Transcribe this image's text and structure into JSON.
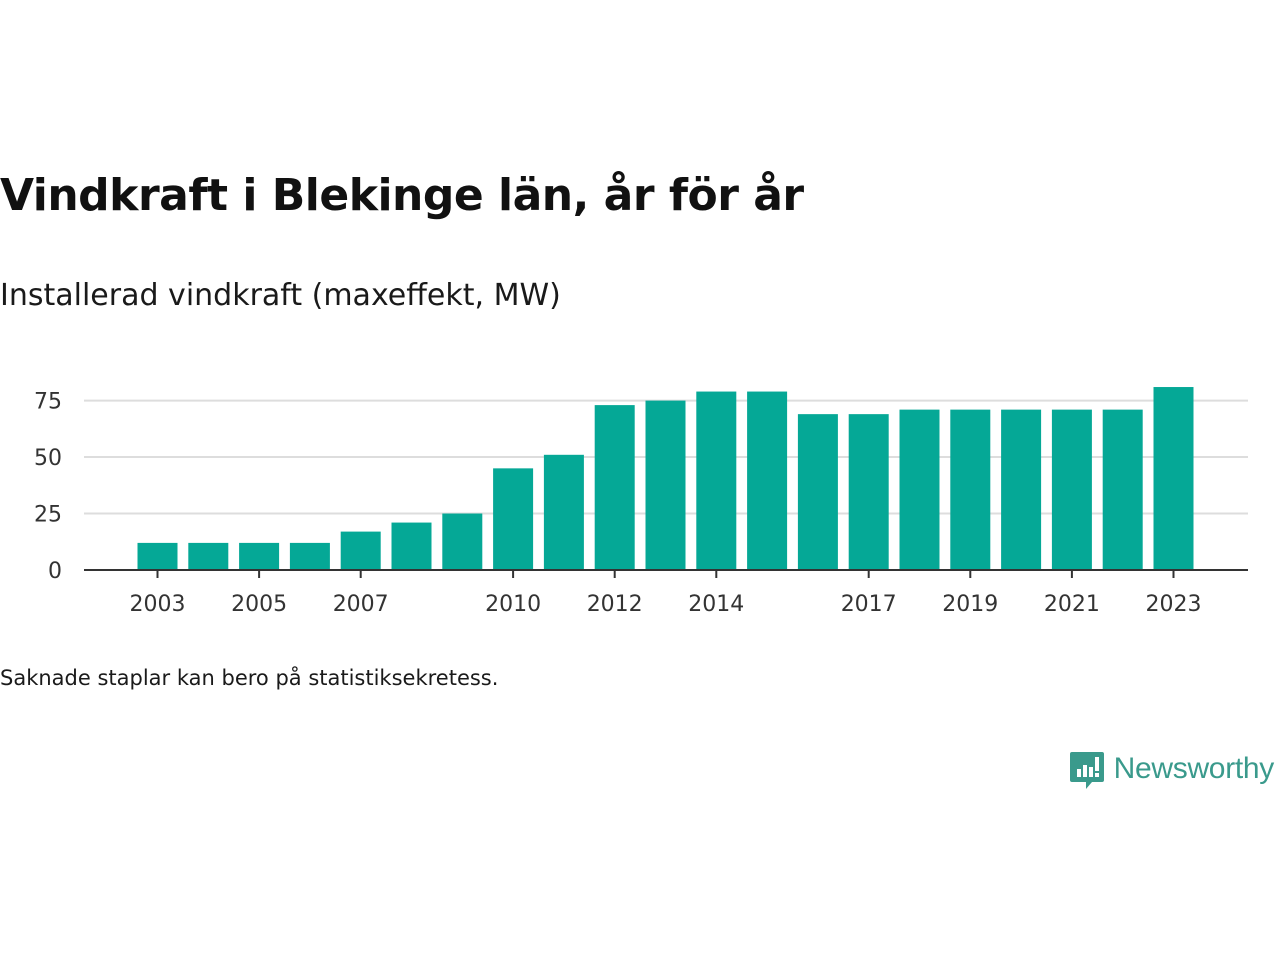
{
  "title": "Vindkraft i Blekinge län, år för år",
  "subtitle": "Installerad vindkraft (maxeffekt, MW)",
  "note": "Saknade staplar kan bero på statistiksekretess.",
  "brand": {
    "name": "Newsworthy",
    "icon": "newsworthy-logo-icon",
    "color": "#3a9a8c"
  },
  "colors": {
    "bar": "#05a896",
    "grid": "#dddddd",
    "axis": "#333333"
  },
  "chart_data": {
    "type": "bar",
    "categories": [
      "2003",
      "2004",
      "2005",
      "2006",
      "2007",
      "2008",
      "2009",
      "2010",
      "2011",
      "2012",
      "2013",
      "2014",
      "2015",
      "2016",
      "2017",
      "2018",
      "2019",
      "2020",
      "2021",
      "2022",
      "2023"
    ],
    "values": [
      12,
      12,
      12,
      12,
      17,
      21,
      25,
      45,
      51,
      73,
      75,
      79,
      79,
      69,
      69,
      71,
      71,
      71,
      71,
      71,
      81
    ],
    "xticks": [
      "2003",
      "2005",
      "2007",
      "2010",
      "2012",
      "2014",
      "2017",
      "2019",
      "2021",
      "2023"
    ],
    "yticks": [
      0,
      25,
      50,
      75
    ],
    "ylim": [
      0,
      85
    ],
    "title": "Vindkraft i Blekinge län, år för år",
    "subtitle": "Installerad vindkraft (maxeffekt, MW)",
    "xlabel": "",
    "ylabel": "",
    "grid": true,
    "legend": "none"
  }
}
